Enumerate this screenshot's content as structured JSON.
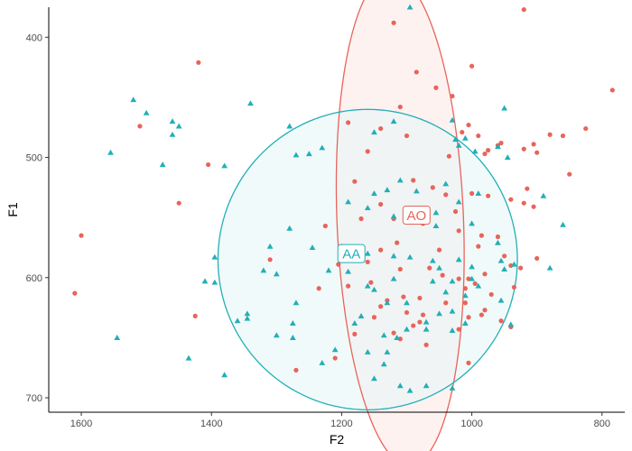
{
  "chart_data": {
    "type": "scatter",
    "xlabel": "F2",
    "ylabel": "F1",
    "x_reversed": true,
    "y_reversed": true,
    "xlim": [
      1650,
      765
    ],
    "ylim": [
      375,
      712
    ],
    "x_ticks": [
      1600,
      1400,
      1200,
      1000,
      800
    ],
    "y_ticks": [
      400,
      500,
      600,
      700
    ],
    "grid": false,
    "legend": "none",
    "series": [
      {
        "name": "AO",
        "color": "#E8645A",
        "fill": "#FDE8E6",
        "marker": "circle",
        "ellipse": {
          "cx": 1110,
          "cy": 552,
          "rx": 205,
          "ry": 97,
          "angle_deg": 85
        },
        "label_pos": [
          1085,
          548
        ],
        "points": [
          [
            920,
            377
          ],
          [
            1120,
            388
          ],
          [
            1420,
            421
          ],
          [
            1085,
            429
          ],
          [
            1000,
            424
          ],
          [
            784,
            444
          ],
          [
            1055,
            442
          ],
          [
            1030,
            449
          ],
          [
            1110,
            458
          ],
          [
            1510,
            474
          ],
          [
            1190,
            471
          ],
          [
            1140,
            476
          ],
          [
            1005,
            473
          ],
          [
            880,
            481
          ],
          [
            860,
            482
          ],
          [
            825,
            476
          ],
          [
            1015,
            479
          ],
          [
            990,
            482
          ],
          [
            955,
            488
          ],
          [
            975,
            494
          ],
          [
            1100,
            482
          ],
          [
            1035,
            499
          ],
          [
            980,
            497
          ],
          [
            960,
            490
          ],
          [
            920,
            493
          ],
          [
            905,
            489
          ],
          [
            900,
            496
          ],
          [
            1405,
            506
          ],
          [
            850,
            514
          ],
          [
            915,
            526
          ],
          [
            1160,
            495
          ],
          [
            1090,
            519
          ],
          [
            1060,
            525
          ],
          [
            1040,
            531
          ],
          [
            1000,
            530
          ],
          [
            1180,
            520
          ],
          [
            1450,
            538
          ],
          [
            1140,
            539
          ],
          [
            1090,
            544
          ],
          [
            1025,
            545
          ],
          [
            975,
            532
          ],
          [
            940,
            535
          ],
          [
            920,
            538
          ],
          [
            905,
            541
          ],
          [
            1600,
            565
          ],
          [
            1225,
            557
          ],
          [
            1170,
            551
          ],
          [
            1120,
            551
          ],
          [
            1075,
            555
          ],
          [
            1020,
            561
          ],
          [
            985,
            565
          ],
          [
            960,
            566
          ],
          [
            1115,
            571
          ],
          [
            1200,
            575
          ],
          [
            1140,
            577
          ],
          [
            1050,
            577
          ],
          [
            990,
            574
          ],
          [
            950,
            582
          ],
          [
            900,
            584
          ],
          [
            1310,
            585
          ],
          [
            1205,
            589
          ],
          [
            1160,
            587
          ],
          [
            1110,
            593
          ],
          [
            1065,
            592
          ],
          [
            1045,
            598
          ],
          [
            1020,
            601
          ],
          [
            1005,
            601
          ],
          [
            980,
            597
          ],
          [
            940,
            590
          ],
          [
            925,
            592
          ],
          [
            1610,
            613
          ],
          [
            1235,
            609
          ],
          [
            1190,
            607
          ],
          [
            1155,
            604
          ],
          [
            1130,
            619
          ],
          [
            1105,
            616
          ],
          [
            1080,
            617
          ],
          [
            1010,
            609
          ],
          [
            995,
            605
          ],
          [
            970,
            614
          ],
          [
            935,
            608
          ],
          [
            1140,
            624
          ],
          [
            1100,
            629
          ],
          [
            1075,
            631
          ],
          [
            1040,
            621
          ],
          [
            1010,
            621
          ],
          [
            980,
            627
          ],
          [
            955,
            636
          ],
          [
            1150,
            633
          ],
          [
            1080,
            637
          ],
          [
            1020,
            643
          ],
          [
            1005,
            633
          ],
          [
            985,
            631
          ],
          [
            940,
            641
          ],
          [
            1425,
            632
          ],
          [
            1180,
            647
          ],
          [
            1090,
            640
          ],
          [
            1120,
            646
          ],
          [
            1110,
            651
          ],
          [
            1070,
            656
          ],
          [
            1270,
            677
          ],
          [
            1210,
            667
          ],
          [
            1005,
            671
          ]
        ]
      },
      {
        "name": "AA",
        "color": "#22AFB7",
        "fill": "#E6F5F5",
        "marker": "triangle",
        "ellipse": {
          "cx": 1160,
          "cy": 585,
          "rx": 230,
          "ry": 125,
          "angle_deg": 0
        },
        "label_pos": [
          1185,
          580
        ],
        "points": [
          [
            1095,
            375
          ],
          [
            1520,
            452
          ],
          [
            1340,
            455
          ],
          [
            950,
            459
          ],
          [
            1500,
            463
          ],
          [
            1460,
            470
          ],
          [
            1450,
            474
          ],
          [
            1030,
            469
          ],
          [
            1120,
            470
          ],
          [
            1280,
            474
          ],
          [
            1460,
            481
          ],
          [
            1150,
            479
          ],
          [
            1025,
            485
          ],
          [
            1010,
            484
          ],
          [
            1020,
            490
          ],
          [
            995,
            495
          ],
          [
            960,
            491
          ],
          [
            1555,
            496
          ],
          [
            1230,
            492
          ],
          [
            1270,
            498
          ],
          [
            1250,
            497
          ],
          [
            945,
            500
          ],
          [
            1475,
            506
          ],
          [
            1380,
            507
          ],
          [
            1040,
            522
          ],
          [
            1110,
            519
          ],
          [
            1130,
            527
          ],
          [
            1085,
            528
          ],
          [
            1150,
            530
          ],
          [
            990,
            530
          ],
          [
            1020,
            537
          ],
          [
            1190,
            537
          ],
          [
            1160,
            542
          ],
          [
            1055,
            546
          ],
          [
            1120,
            549
          ],
          [
            890,
            532
          ],
          [
            1055,
            557
          ],
          [
            860,
            556
          ],
          [
            1000,
            555
          ],
          [
            1280,
            559
          ],
          [
            960,
            571
          ],
          [
            1310,
            574
          ],
          [
            1245,
            575
          ],
          [
            1120,
            582
          ],
          [
            1160,
            580
          ],
          [
            1200,
            574
          ],
          [
            1020,
            585
          ],
          [
            1095,
            583
          ],
          [
            1060,
            586
          ],
          [
            1050,
            592
          ],
          [
            1000,
            591
          ],
          [
            955,
            586
          ],
          [
            1395,
            583
          ],
          [
            935,
            589
          ],
          [
            1220,
            594
          ],
          [
            1320,
            594
          ],
          [
            1190,
            595
          ],
          [
            1120,
            601
          ],
          [
            1030,
            603
          ],
          [
            1060,
            603
          ],
          [
            1000,
            601
          ],
          [
            990,
            607
          ],
          [
            950,
            593
          ],
          [
            1410,
            603
          ],
          [
            1395,
            604
          ],
          [
            880,
            592
          ],
          [
            1300,
            597
          ],
          [
            1160,
            607
          ],
          [
            1150,
            610
          ],
          [
            1270,
            621
          ],
          [
            1130,
            621
          ],
          [
            1040,
            612
          ],
          [
            1100,
            621
          ],
          [
            1010,
            615
          ],
          [
            955,
            619
          ],
          [
            1345,
            630
          ],
          [
            1030,
            628
          ],
          [
            1170,
            632
          ],
          [
            1050,
            630
          ],
          [
            1010,
            638
          ],
          [
            1070,
            637
          ],
          [
            1345,
            634
          ],
          [
            1360,
            636
          ],
          [
            1275,
            638
          ],
          [
            1180,
            638
          ],
          [
            1100,
            643
          ],
          [
            1070,
            643
          ],
          [
            1030,
            644
          ],
          [
            940,
            639
          ],
          [
            1545,
            650
          ],
          [
            1300,
            648
          ],
          [
            1275,
            650
          ],
          [
            1135,
            648
          ],
          [
            1115,
            650
          ],
          [
            1210,
            660
          ],
          [
            1160,
            662
          ],
          [
            1130,
            662
          ],
          [
            1435,
            667
          ],
          [
            1230,
            671
          ],
          [
            1135,
            672
          ],
          [
            1380,
            681
          ],
          [
            1150,
            684
          ],
          [
            1110,
            690
          ],
          [
            1095,
            694
          ],
          [
            1070,
            690
          ],
          [
            1030,
            692
          ]
        ]
      }
    ]
  }
}
